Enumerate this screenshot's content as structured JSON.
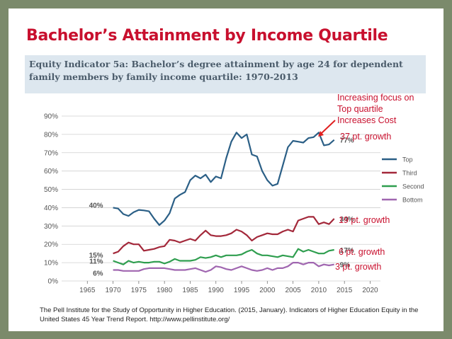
{
  "slide_title": "Bachelor’s Attainment by Income Quartile",
  "chart_title": "Equity Indicator 5a: Bachelor’s degree attainment by age 24 for dependent family members by family income quartile: 1970-2013",
  "citation": "The Pell Institute for the Study of Opportunity in Higher Education. (2015, January). Indicators of Higher Education Equity in the United States 45 Year Trend Report. http://www.pellinstitute.org/",
  "annotations": {
    "focus_lines": [
      "Increasing focus on",
      "Top quartile",
      "Increases Cost"
    ],
    "top_growth": "37 pt. growth",
    "third_growth": "19 pt. growth",
    "second_growth": "6 pt. growth",
    "bottom_growth": "3 pt. growth",
    "arrow_color": "#e02020",
    "text_color": "#c8102e"
  },
  "chart_data": {
    "type": "line",
    "xlim": [
      1960,
      2022
    ],
    "ylim": [
      0,
      90
    ],
    "x_ticks": [
      1965,
      1970,
      1975,
      1980,
      1985,
      1990,
      1995,
      2000,
      2005,
      2010,
      2015,
      2020
    ],
    "y_ticks": [
      0,
      10,
      20,
      30,
      40,
      50,
      60,
      70,
      80,
      90
    ],
    "y_tick_labels": [
      "0%",
      "10%",
      "20%",
      "30%",
      "40%",
      "50%",
      "60%",
      "70%",
      "80%",
      "90%"
    ],
    "grid": true,
    "legend_position": "right",
    "series": [
      {
        "name": "Top",
        "color": "#2b5f86",
        "start_label": "40%",
        "end_label": "77%",
        "points": [
          [
            1970,
            40
          ],
          [
            1971,
            39.5
          ],
          [
            1972,
            36.5
          ],
          [
            1973,
            35.5
          ],
          [
            1974,
            37.5
          ],
          [
            1975,
            38.8
          ],
          [
            1976,
            38.5
          ],
          [
            1977,
            38
          ],
          [
            1978,
            34
          ],
          [
            1979,
            30.5
          ],
          [
            1980,
            33
          ],
          [
            1981,
            37
          ],
          [
            1982,
            45
          ],
          [
            1983,
            47
          ],
          [
            1984,
            48.5
          ],
          [
            1985,
            55
          ],
          [
            1986,
            57.5
          ],
          [
            1987,
            56
          ],
          [
            1988,
            58
          ],
          [
            1989,
            54
          ],
          [
            1990,
            57
          ],
          [
            1991,
            56
          ],
          [
            1992,
            67
          ],
          [
            1993,
            76
          ],
          [
            1994,
            81
          ],
          [
            1995,
            78
          ],
          [
            1996,
            80
          ],
          [
            1997,
            69
          ],
          [
            1998,
            68
          ],
          [
            1999,
            60
          ],
          [
            2000,
            55
          ],
          [
            2001,
            52
          ],
          [
            2002,
            53
          ],
          [
            2003,
            63
          ],
          [
            2004,
            73
          ],
          [
            2005,
            76.5
          ],
          [
            2006,
            76
          ],
          [
            2007,
            75.5
          ],
          [
            2008,
            78
          ],
          [
            2009,
            78.5
          ],
          [
            2010,
            81
          ],
          [
            2011,
            74
          ],
          [
            2012,
            74.5
          ],
          [
            2013,
            77
          ]
        ]
      },
      {
        "name": "Third",
        "color": "#a3283a",
        "start_label": "15%",
        "end_label": "34%",
        "points": [
          [
            1970,
            15
          ],
          [
            1971,
            16
          ],
          [
            1972,
            19
          ],
          [
            1973,
            21
          ],
          [
            1974,
            20
          ],
          [
            1975,
            20
          ],
          [
            1976,
            16.5
          ],
          [
            1977,
            17
          ],
          [
            1978,
            17.5
          ],
          [
            1979,
            18.5
          ],
          [
            1980,
            19
          ],
          [
            1981,
            22.5
          ],
          [
            1982,
            22
          ],
          [
            1983,
            21
          ],
          [
            1984,
            22
          ],
          [
            1985,
            23
          ],
          [
            1986,
            22
          ],
          [
            1987,
            25
          ],
          [
            1988,
            27.5
          ],
          [
            1989,
            25
          ],
          [
            1990,
            24.5
          ],
          [
            1991,
            24.5
          ],
          [
            1992,
            25
          ],
          [
            1993,
            26
          ],
          [
            1994,
            28
          ],
          [
            1995,
            27
          ],
          [
            1996,
            25
          ],
          [
            1997,
            22
          ],
          [
            1998,
            24
          ],
          [
            1999,
            25
          ],
          [
            2000,
            26
          ],
          [
            2001,
            25.5
          ],
          [
            2002,
            25.5
          ],
          [
            2003,
            27
          ],
          [
            2004,
            28
          ],
          [
            2005,
            27
          ],
          [
            2006,
            33
          ],
          [
            2007,
            34
          ],
          [
            2008,
            35
          ],
          [
            2009,
            35
          ],
          [
            2010,
            31
          ],
          [
            2011,
            32
          ],
          [
            2012,
            31
          ],
          [
            2013,
            34
          ]
        ]
      },
      {
        "name": "Second",
        "color": "#2f9e4f",
        "start_label": "11%",
        "end_label": "17%",
        "points": [
          [
            1970,
            11
          ],
          [
            1971,
            10
          ],
          [
            1972,
            9
          ],
          [
            1973,
            11
          ],
          [
            1974,
            10
          ],
          [
            1975,
            10.5
          ],
          [
            1976,
            10
          ],
          [
            1977,
            10
          ],
          [
            1978,
            10.5
          ],
          [
            1979,
            10.5
          ],
          [
            1980,
            9.5
          ],
          [
            1981,
            10.5
          ],
          [
            1982,
            12
          ],
          [
            1983,
            11
          ],
          [
            1984,
            11
          ],
          [
            1985,
            11
          ],
          [
            1986,
            11.5
          ],
          [
            1987,
            13
          ],
          [
            1988,
            12.5
          ],
          [
            1989,
            13
          ],
          [
            1990,
            14
          ],
          [
            1991,
            13
          ],
          [
            1992,
            14
          ],
          [
            1993,
            14
          ],
          [
            1994,
            14
          ],
          [
            1995,
            14.5
          ],
          [
            1996,
            16
          ],
          [
            1997,
            17
          ],
          [
            1998,
            15
          ],
          [
            1999,
            14
          ],
          [
            2000,
            14
          ],
          [
            2001,
            13.5
          ],
          [
            2002,
            13
          ],
          [
            2003,
            14
          ],
          [
            2004,
            13.5
          ],
          [
            2005,
            13
          ],
          [
            2006,
            17.5
          ],
          [
            2007,
            16
          ],
          [
            2008,
            17
          ],
          [
            2009,
            16
          ],
          [
            2010,
            15
          ],
          [
            2011,
            15
          ],
          [
            2012,
            16.5
          ],
          [
            2013,
            17
          ]
        ]
      },
      {
        "name": "Bottom",
        "color": "#a066b0",
        "start_label": "6%",
        "end_label": "9%",
        "points": [
          [
            1970,
            6
          ],
          [
            1971,
            6
          ],
          [
            1972,
            5.5
          ],
          [
            1973,
            5.5
          ],
          [
            1974,
            5.5
          ],
          [
            1975,
            5.5
          ],
          [
            1976,
            6.5
          ],
          [
            1977,
            7
          ],
          [
            1978,
            7
          ],
          [
            1979,
            7
          ],
          [
            1980,
            7
          ],
          [
            1981,
            6.5
          ],
          [
            1982,
            6
          ],
          [
            1983,
            6
          ],
          [
            1984,
            6
          ],
          [
            1985,
            6.5
          ],
          [
            1986,
            7
          ],
          [
            1987,
            6
          ],
          [
            1988,
            5
          ],
          [
            1989,
            6
          ],
          [
            1990,
            8
          ],
          [
            1991,
            7.5
          ],
          [
            1992,
            6.5
          ],
          [
            1993,
            6
          ],
          [
            1994,
            7
          ],
          [
            1995,
            8
          ],
          [
            1996,
            7
          ],
          [
            1997,
            6
          ],
          [
            1998,
            5.5
          ],
          [
            1999,
            6
          ],
          [
            2000,
            7
          ],
          [
            2001,
            6
          ],
          [
            2002,
            7
          ],
          [
            2003,
            7
          ],
          [
            2004,
            8
          ],
          [
            2005,
            10
          ],
          [
            2006,
            10
          ],
          [
            2007,
            9
          ],
          [
            2008,
            10
          ],
          [
            2009,
            10
          ],
          [
            2010,
            8
          ],
          [
            2011,
            9
          ],
          [
            2012,
            8.5
          ],
          [
            2013,
            9
          ]
        ]
      }
    ]
  }
}
